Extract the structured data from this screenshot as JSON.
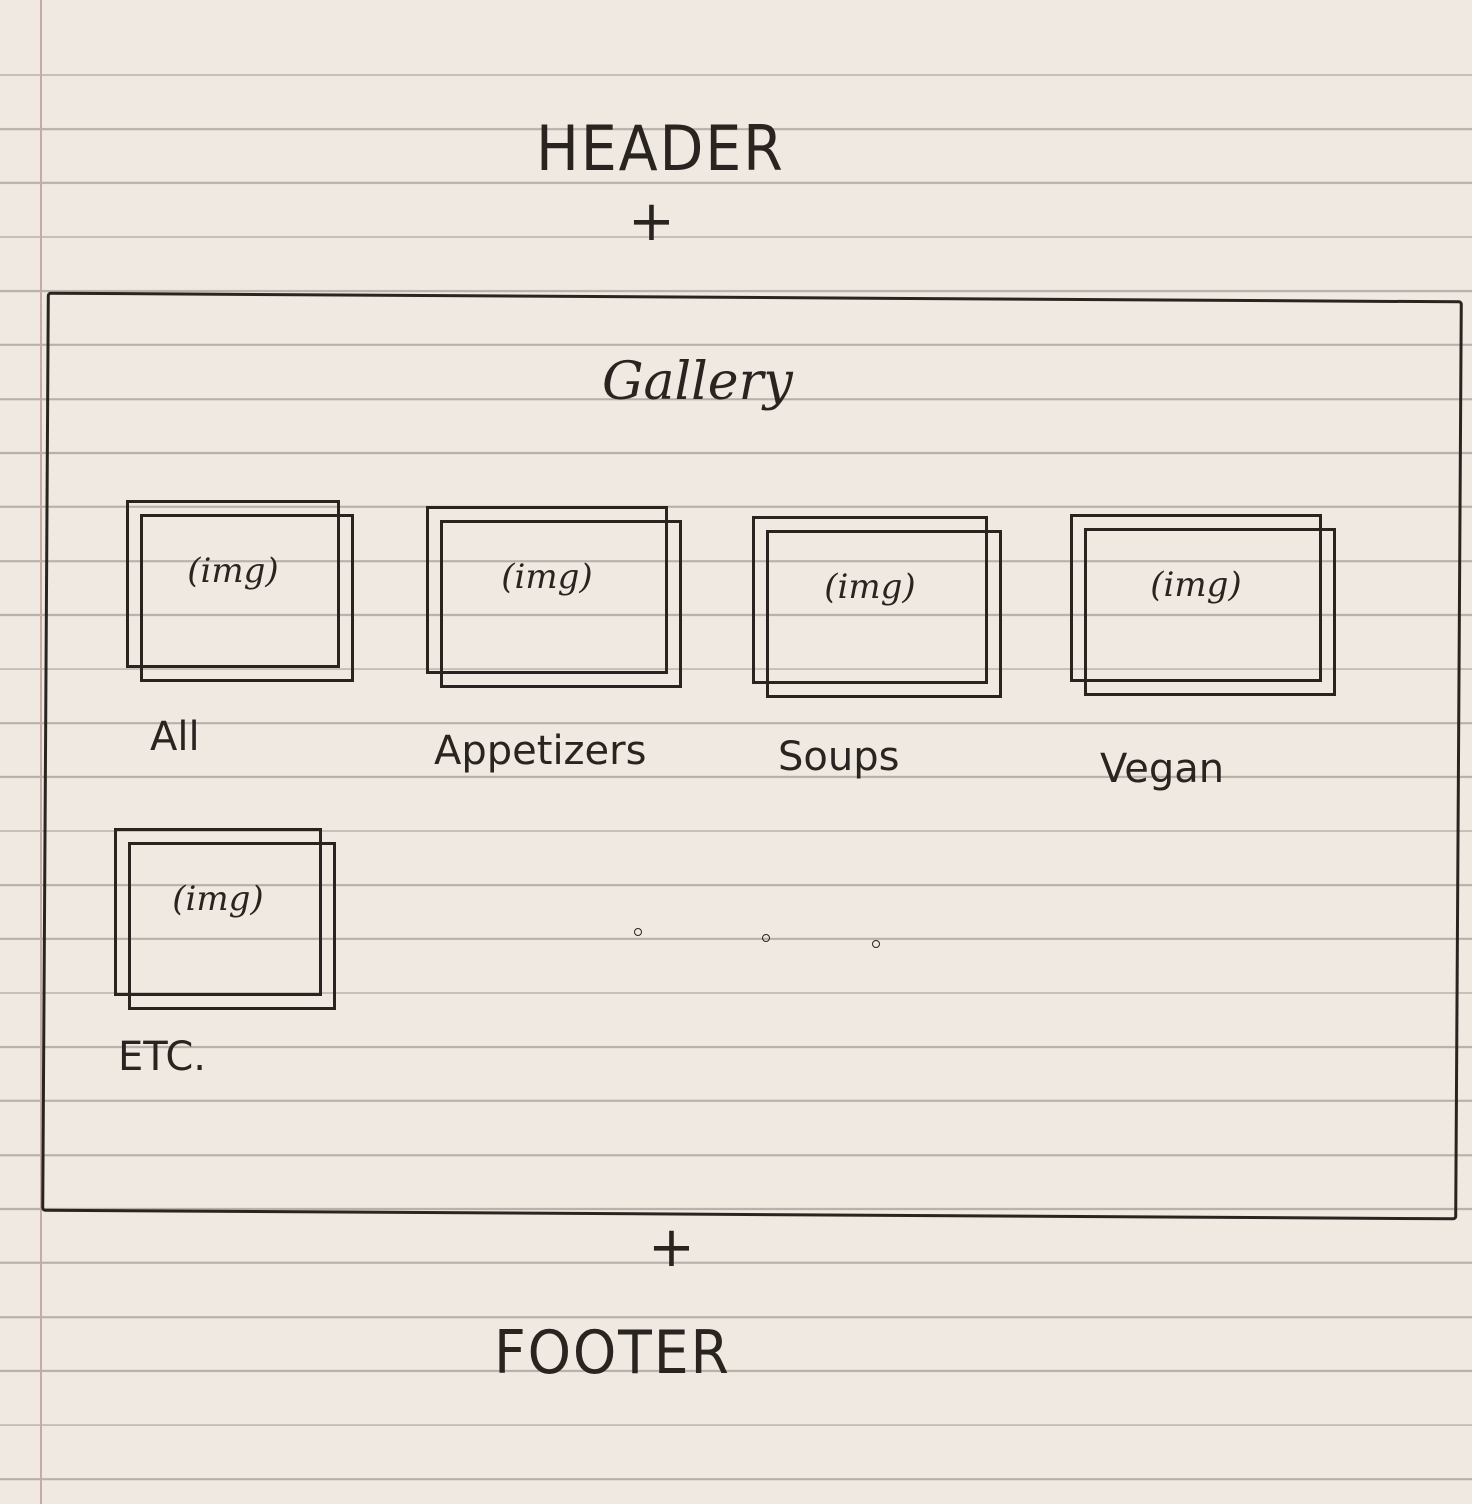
{
  "header_label": "HEADER",
  "plus_top": "+",
  "gallery": {
    "title": "Gallery",
    "cards": [
      {
        "img_label": "(img)",
        "category": "All"
      },
      {
        "img_label": "(img)",
        "category": "Appetizers"
      },
      {
        "img_label": "(img)",
        "category": "Soups"
      },
      {
        "img_label": "(img)",
        "category": "Vegan"
      },
      {
        "img_label": "(img)",
        "category": "ETC."
      }
    ]
  },
  "plus_bottom": "+",
  "footer_label": "FOOTER"
}
